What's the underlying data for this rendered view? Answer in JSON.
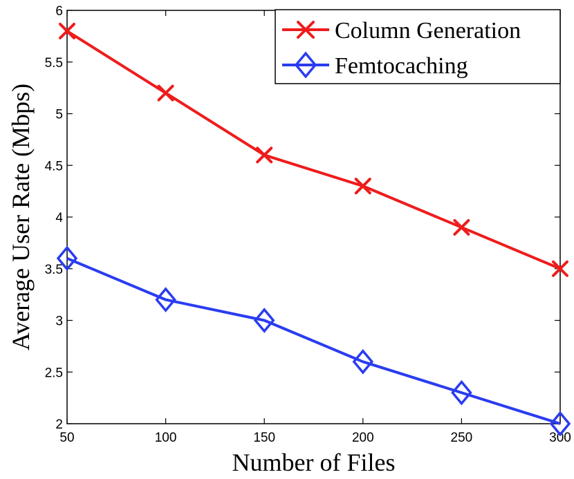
{
  "chart_data": {
    "type": "line",
    "title": "",
    "xlabel": "Number of Files",
    "ylabel": "Average User Rate (Mbps)",
    "x": [
      50,
      100,
      150,
      200,
      250,
      300
    ],
    "xlim": [
      50,
      300
    ],
    "ylim": [
      2,
      6
    ],
    "xticks": [
      "50",
      "100",
      "150",
      "200",
      "250",
      "300"
    ],
    "yticks": [
      "2",
      "2.5",
      "3",
      "3.5",
      "4",
      "4.5",
      "5",
      "5.5",
      "6"
    ],
    "grid": false,
    "legend_position": "top-right",
    "series": [
      {
        "name": "Column Generation",
        "values": [
          5.8,
          5.2,
          4.6,
          4.3,
          3.9,
          3.5
        ],
        "color": "#ee1c1c",
        "marker": "x"
      },
      {
        "name": "Femtocaching",
        "values": [
          3.6,
          3.2,
          3.0,
          2.6,
          2.3,
          2.0
        ],
        "color": "#2a3cf0",
        "marker": "diamond"
      }
    ]
  }
}
